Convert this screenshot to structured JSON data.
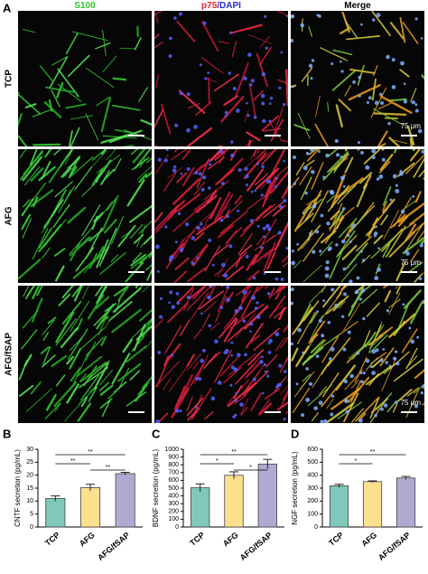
{
  "figure": {
    "panels": [
      "A",
      "B",
      "C",
      "D"
    ],
    "columns": [
      [
        "S100"
      ],
      [
        "p75",
        "/DAPI"
      ],
      [
        "Merge"
      ]
    ],
    "rows": [
      "TCP",
      "AFG",
      "AFG/fSAP"
    ],
    "scale_bar": "75 μm"
  },
  "chart_data": [
    {
      "type": "bar",
      "ylabel": "CNTF secretion (pg/mL)",
      "categories": [
        "TCP",
        "AFG",
        "AFG/fSAP"
      ],
      "values": [
        11,
        15.2,
        20.6
      ],
      "errors": [
        1,
        1.3,
        0.5
      ],
      "colors": [
        "#7fc8bb",
        "#fbe08e",
        "#b2a9d3"
      ],
      "ylim": [
        0,
        30
      ],
      "yticks": [
        0,
        5,
        10,
        15,
        20,
        25,
        30
      ],
      "annotations": [
        {
          "text": "**",
          "between": [
            "TCP",
            "AFG/fSAP"
          ]
        },
        {
          "text": "**",
          "between": [
            "TCP",
            "AFG"
          ]
        },
        {
          "text": "**",
          "between": [
            "AFG",
            "AFG/fSAP"
          ]
        }
      ]
    },
    {
      "type": "bar",
      "ylabel": "BDNF secretion (pg/mL)",
      "categories": [
        "TCP",
        "AFG",
        "AFG/fSAP"
      ],
      "values": [
        505,
        665,
        810
      ],
      "errors": [
        50,
        45,
        60
      ],
      "colors": [
        "#7fc8bb",
        "#fbe08e",
        "#b2a9d3"
      ],
      "ylim": [
        0,
        1000
      ],
      "yticks": [
        0,
        100,
        200,
        300,
        400,
        500,
        600,
        700,
        800,
        900,
        1000
      ],
      "annotations": [
        {
          "text": "**",
          "between": [
            "TCP",
            "AFG/fSAP"
          ]
        },
        {
          "text": "*",
          "between": [
            "TCP",
            "AFG"
          ]
        },
        {
          "text": "*",
          "between": [
            "AFG",
            "AFG/fSAP"
          ]
        }
      ]
    },
    {
      "type": "bar",
      "ylabel": "NGF secretion (pg/mL)",
      "categories": [
        "TCP",
        "AFG",
        "AFG/fSAP"
      ],
      "values": [
        318,
        350,
        378
      ],
      "errors": [
        12,
        6,
        12
      ],
      "colors": [
        "#7fc8bb",
        "#fbe08e",
        "#b2a9d3"
      ],
      "ylim": [
        0,
        600
      ],
      "yticks": [
        0,
        100,
        200,
        300,
        400,
        500,
        600
      ],
      "annotations": [
        {
          "text": "**",
          "between": [
            "TCP",
            "AFG/fSAP"
          ]
        },
        {
          "text": "*",
          "between": [
            "TCP",
            "AFG"
          ]
        }
      ]
    }
  ]
}
